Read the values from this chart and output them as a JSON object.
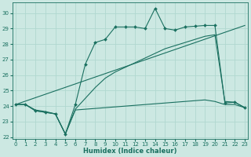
{
  "xlabel": "Humidex (Indice chaleur)",
  "xlim": [
    -0.3,
    23.3
  ],
  "ylim": [
    21.9,
    30.7
  ],
  "yticks": [
    22,
    23,
    24,
    25,
    26,
    27,
    28,
    29,
    30
  ],
  "xticks": [
    0,
    1,
    2,
    3,
    4,
    5,
    6,
    7,
    8,
    9,
    10,
    11,
    12,
    13,
    14,
    15,
    16,
    17,
    18,
    19,
    20,
    21,
    22,
    23
  ],
  "bg_color": "#cce8e2",
  "grid_color": "#b0d8d0",
  "line_color": "#1a7060",
  "line1_x": [
    0,
    1,
    2,
    3,
    4,
    5,
    6,
    7,
    8,
    9,
    10,
    11,
    12,
    13,
    14,
    15,
    16,
    17,
    18,
    19,
    20,
    21,
    22,
    23
  ],
  "line1_y": [
    24.1,
    24.1,
    23.7,
    23.6,
    23.5,
    22.2,
    24.1,
    26.7,
    28.1,
    28.3,
    29.1,
    29.1,
    29.1,
    29.0,
    30.3,
    29.0,
    28.9,
    29.1,
    29.15,
    29.2,
    29.2,
    24.2,
    24.25,
    23.9
  ],
  "line2_x": [
    0,
    1,
    2,
    3,
    4,
    5,
    6,
    7,
    8,
    9,
    10,
    11,
    12,
    13,
    14,
    15,
    16,
    17,
    18,
    19,
    20,
    21,
    22,
    23
  ],
  "line2_y": [
    24.1,
    24.1,
    23.75,
    23.65,
    23.5,
    22.2,
    23.8,
    24.5,
    25.2,
    25.8,
    26.2,
    26.5,
    26.8,
    27.1,
    27.4,
    27.7,
    27.9,
    28.1,
    28.3,
    28.5,
    28.6,
    24.3,
    24.25,
    23.9
  ],
  "line3_x": [
    0,
    1,
    2,
    3,
    4,
    5,
    6,
    7,
    8,
    9,
    10,
    11,
    12,
    13,
    14,
    15,
    16,
    17,
    18,
    19,
    20,
    21,
    22,
    23
  ],
  "line3_y": [
    24.1,
    24.1,
    23.7,
    23.6,
    23.5,
    22.2,
    23.75,
    23.8,
    23.85,
    23.9,
    23.95,
    24.0,
    24.05,
    24.1,
    24.15,
    24.2,
    24.25,
    24.3,
    24.35,
    24.4,
    24.3,
    24.1,
    24.1,
    23.9
  ],
  "line4_x": [
    0,
    23
  ],
  "line4_y": [
    24.1,
    29.2
  ]
}
